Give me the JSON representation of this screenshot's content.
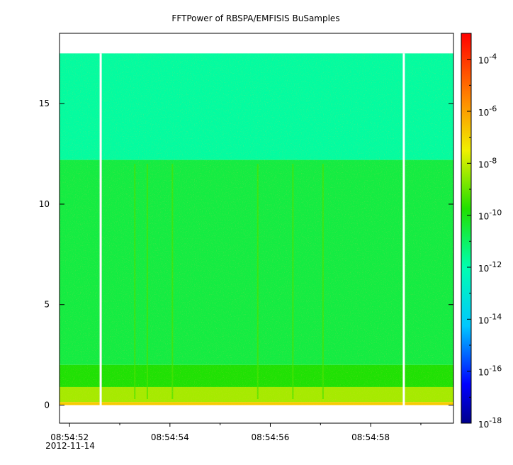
{
  "chart_data": {
    "type": "heatmap",
    "title": "FFTPower of RBSPA/EMFISIS  BuSamples",
    "xlabel": "",
    "ylabel": "",
    "x_axis": {
      "date_label": "2012-11-14",
      "tick_labels": [
        "08:54:52",
        "08:54:54",
        "08:54:56",
        "08:54:58"
      ],
      "tick_values_sec": [
        52,
        54,
        56,
        58
      ],
      "minor_tick_values_sec": [
        53,
        55,
        57,
        59
      ],
      "range_sec": [
        51.8,
        59.65
      ]
    },
    "y_axis": {
      "tick_labels": [
        "0",
        "5",
        "10",
        "15"
      ],
      "tick_values": [
        0,
        5,
        10,
        15
      ],
      "ylim": [
        -0.9,
        18.5
      ]
    },
    "colorbar": {
      "scale": "log",
      "range": [
        1e-18,
        0.001
      ],
      "major_exponents": [
        -18,
        -16,
        -14,
        -12,
        -10,
        -8,
        -6,
        -4
      ],
      "tick_base": "10"
    },
    "data_extent": {
      "y_max": 17.5,
      "gap_times_sec": [
        52.62,
        58.66
      ]
    },
    "spectral_bands": [
      {
        "y_from": 12.2,
        "y_to": 17.5,
        "log10_power": -11.8
      },
      {
        "y_from": 2.0,
        "y_to": 12.2,
        "log10_power": -10.6
      },
      {
        "y_from": 0.9,
        "y_to": 2.0,
        "log10_power": -9.8
      },
      {
        "y_from": 0.15,
        "y_to": 0.9,
        "log10_power": -8.3
      },
      {
        "y_from": 0.0,
        "y_to": 0.15,
        "log10_power": -6.8
      }
    ],
    "vertical_streaks_sec": [
      53.3,
      53.55,
      54.05,
      55.75,
      56.45,
      57.05
    ]
  }
}
